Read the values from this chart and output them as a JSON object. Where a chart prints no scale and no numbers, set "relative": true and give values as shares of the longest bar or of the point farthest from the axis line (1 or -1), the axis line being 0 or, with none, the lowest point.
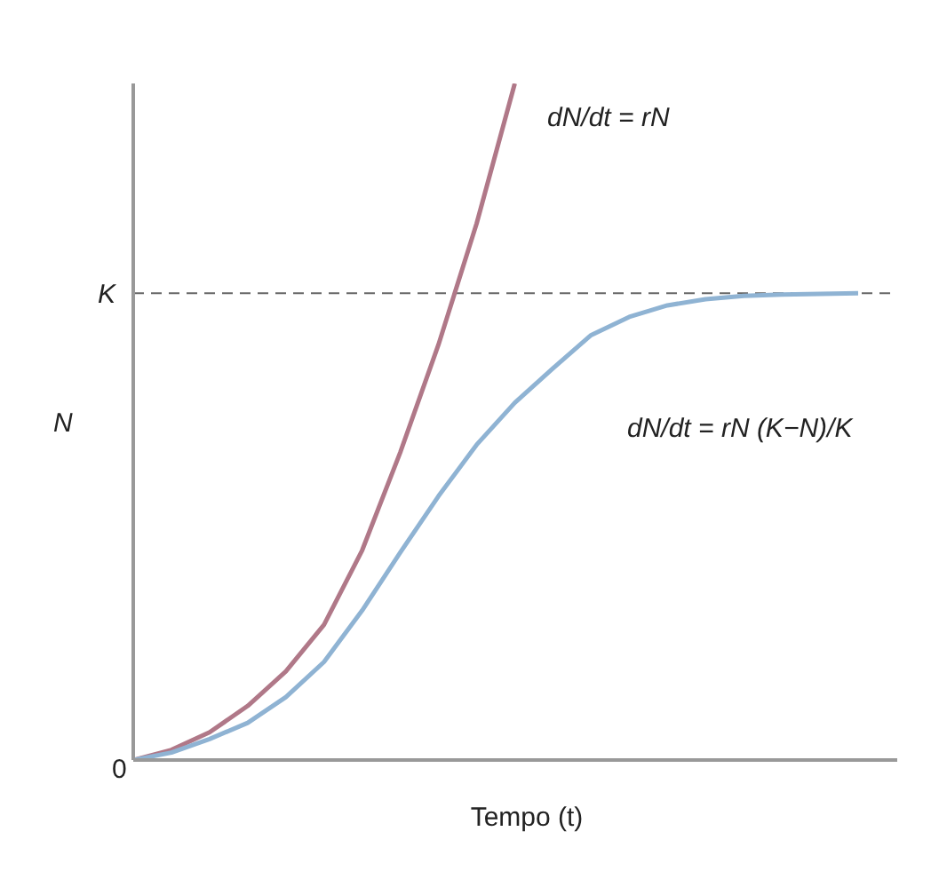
{
  "chart_data": {
    "type": "line",
    "relative": true,
    "xlabel": "Tempo (t)",
    "ylabel": "N",
    "categories": [
      null,
      null,
      null,
      null,
      null,
      null,
      null,
      null,
      null,
      null,
      null,
      null,
      null,
      null,
      null,
      null,
      null,
      null,
      null,
      null
    ],
    "grid": false,
    "legend": false,
    "marker": "none",
    "line_style": "solid",
    "series": [
      {
        "color": "#b07888",
        "values": [
          0,
          0.015,
          0.041,
          0.08,
          0.131,
          0.2,
          0.31,
          0.455,
          0.614,
          0.793,
          1,
          null,
          null,
          null,
          null,
          null,
          null,
          null,
          null,
          null
        ]
      },
      {
        "color": "#8fb3d3",
        "values": [
          0,
          0.011,
          0.031,
          0.055,
          0.093,
          0.145,
          0.221,
          0.307,
          0.39,
          0.466,
          0.528,
          0.579,
          0.628,
          0.655,
          0.672,
          0.681,
          0.686,
          0.688,
          0.689,
          0.69
        ]
      }
    ],
    "ref_lines": [
      {
        "axis": "y",
        "value": 0.69,
        "label": "K",
        "color": "#666666",
        "line_style": "dashed"
      }
    ],
    "annotations": [
      "dN/dt = rN",
      "dN/dt = rN (K−N)/K",
      "0"
    ]
  }
}
